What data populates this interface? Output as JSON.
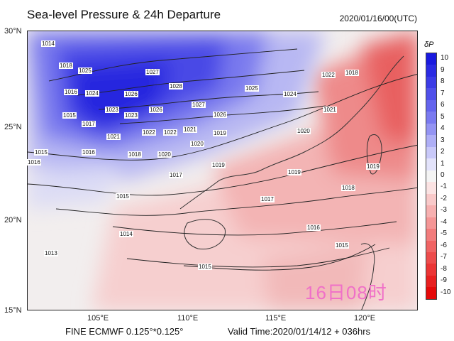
{
  "header": {
    "title": "Sea-level Pressure & 24h Departure",
    "datetime": "2020/01/16/00(UTC)"
  },
  "axes": {
    "lat_labels": [
      "30°N",
      "25°N",
      "20°N",
      "15°N"
    ],
    "lon_labels": [
      "105°E",
      "110°E",
      "115°E",
      "120°E"
    ]
  },
  "footer": {
    "model": "FINE ECMWF 0.125°*0.125°",
    "valid": "Valid Time:2020/01/14/12 + 036hrs"
  },
  "legend": {
    "title": "δP",
    "levels": [
      "10",
      "9",
      "8",
      "7",
      "6",
      "5",
      "4",
      "3",
      "2",
      "1",
      "0",
      "-1",
      "-2",
      "-3",
      "-4",
      "-5",
      "-6",
      "-7",
      "-8",
      "-9",
      "-10"
    ],
    "colors": [
      "#1a1adf",
      "#2b2be3",
      "#3c3ce6",
      "#5050ea",
      "#6464ed",
      "#7a7af0",
      "#9494f3",
      "#afaff6",
      "#c9c9f9",
      "#e3e3fb",
      "#f4f4f4",
      "#fbe3e3",
      "#f9c9c9",
      "#f7b0b0",
      "#f59696",
      "#f27c7c",
      "#f06464",
      "#ed4c4c",
      "#eb3535",
      "#e82020",
      "#e50a0a"
    ]
  },
  "overlay_text": "16日08时",
  "isobars": {
    "labels": [
      "1014",
      "1018",
      "1025",
      "1016",
      "1024",
      "1026",
      "1027",
      "1028",
      "1025",
      "1023",
      "1015",
      "1017",
      "1023",
      "1026",
      "1027",
      "1026",
      "1021",
      "1022",
      "1022",
      "1021",
      "1020",
      "1019",
      "1020",
      "1021",
      "1015",
      "1016",
      "1018",
      "1020",
      "1024",
      "1017",
      "1015",
      "1014",
      "1013",
      "1018",
      "1019",
      "1016",
      "1015",
      "1015",
      "1017",
      "1016",
      "1019",
      "1018",
      "1022",
      "1019"
    ]
  }
}
